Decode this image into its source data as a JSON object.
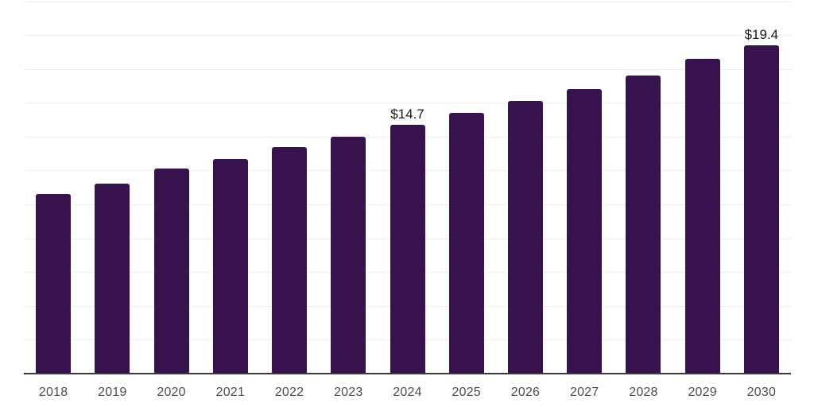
{
  "chart_data": {
    "type": "bar",
    "title": "",
    "xlabel": "",
    "ylabel": "",
    "categories": [
      "2018",
      "2019",
      "2020",
      "2021",
      "2022",
      "2023",
      "2024",
      "2025",
      "2026",
      "2027",
      "2028",
      "2029",
      "2030"
    ],
    "values": [
      10.6,
      11.2,
      12.1,
      12.7,
      13.4,
      14.0,
      14.7,
      15.4,
      16.1,
      16.8,
      17.6,
      18.6,
      19.4
    ],
    "data_labels": {
      "2024": "$14.7",
      "2030": "$19.4"
    },
    "ylim": [
      0,
      22
    ],
    "gridline_step": 2,
    "grid": "horizontal",
    "legend": "none",
    "colors": {
      "bar": "#36134d",
      "axis_line": "#3a3a3a",
      "gridline": "#efefef",
      "tick_label": "#4d4d4d",
      "data_label": "#1a1a1a",
      "background": "#ffffff"
    }
  }
}
